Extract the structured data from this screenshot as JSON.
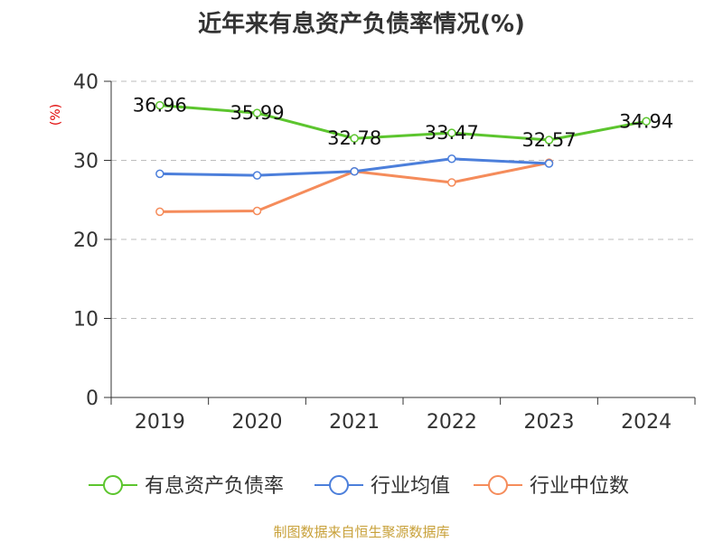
{
  "chart_data": {
    "type": "line",
    "title": "近年来有息资产负债率情况(%)",
    "ylabel": "(%)",
    "ylim": [
      0,
      40
    ],
    "yticks": [
      0,
      10,
      20,
      30,
      40
    ],
    "grid": true,
    "legend_position": "bottom",
    "categories": [
      "2019",
      "2020",
      "2021",
      "2022",
      "2023",
      "2024"
    ],
    "series": [
      {
        "name": "有息资产负债率",
        "color": "#5cc52e",
        "values": [
          36.96,
          35.99,
          32.78,
          33.47,
          32.57,
          34.94
        ],
        "labels": [
          "36.96",
          "35.99",
          "32.78",
          "33.47",
          "32.57",
          "34.94"
        ]
      },
      {
        "name": "行业均值",
        "color": "#4c7fdb",
        "values": [
          28.3,
          28.1,
          28.6,
          30.2,
          29.6,
          null
        ]
      },
      {
        "name": "行业中位数",
        "color": "#f58c5b",
        "values": [
          23.5,
          23.6,
          28.6,
          27.2,
          29.7,
          null
        ]
      }
    ]
  },
  "footer": {
    "source": "制图数据来自恒生聚源数据库"
  }
}
